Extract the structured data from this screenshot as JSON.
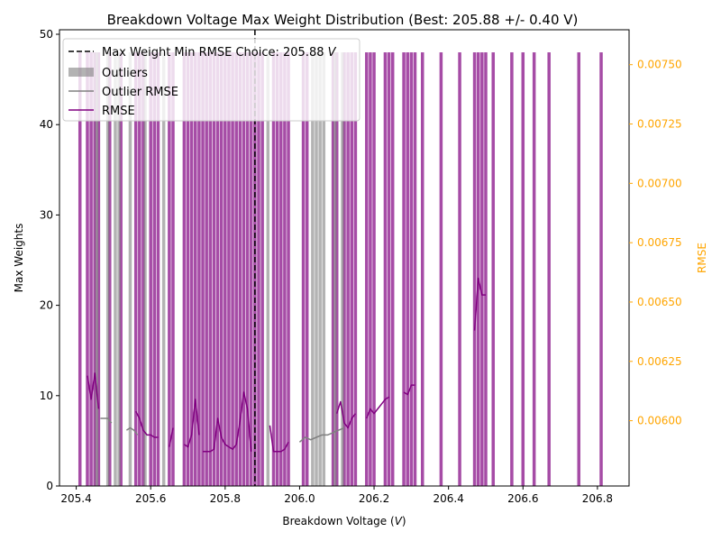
{
  "chart_data": {
    "type": "bar",
    "title": "Breakdown Voltage Max Weight Distribution (Best: 205.88 +/- 0.40 V)",
    "xlabel_main": "Breakdown Voltage (",
    "xlabel_unit": "V",
    "xlabel_close": ")",
    "ylabel_left": "Max Weights",
    "ylabel_right": "RMSE",
    "xlim": [
      205.355,
      206.885
    ],
    "ylim_left": [
      0,
      50.5
    ],
    "ylim_right": [
      0.005725,
      0.007647
    ],
    "x_ticks": [
      205.4,
      205.6,
      205.8,
      206.0,
      206.2,
      206.4,
      206.6,
      206.8
    ],
    "x_tick_labels": [
      "205.4",
      "205.6",
      "205.8",
      "206.0",
      "206.2",
      "206.4",
      "206.6",
      "206.8"
    ],
    "y_left_ticks": [
      0,
      10,
      20,
      30,
      40,
      50
    ],
    "y_left_tick_labels": [
      "0",
      "10",
      "20",
      "30",
      "40",
      "50"
    ],
    "y_right_ticks": [
      0.006,
      0.00625,
      0.0065,
      0.00675,
      0.007,
      0.00725,
      0.0075
    ],
    "y_right_tick_labels": [
      "0.00600",
      "0.00625",
      "0.00650",
      "0.00675",
      "0.00700",
      "0.00725",
      "0.00750"
    ],
    "colors": {
      "main": "#800080",
      "outlier": "#808080",
      "choice": "#000000",
      "right_axis": "#FFA500"
    },
    "legend": {
      "position": "upper left",
      "entries": [
        {
          "kind": "dashed",
          "label_main": "Max Weight Min RMSE Choice: 205.88 ",
          "label_unit": "V"
        },
        {
          "kind": "patch-gray",
          "label": "Outliers"
        },
        {
          "kind": "line-gray",
          "label": "Outlier RMSE"
        },
        {
          "kind": "line-purple",
          "label": "RMSE"
        }
      ]
    },
    "choice_x": 205.88,
    "bar_height": 48,
    "bar_width": 0.01,
    "outlier_bars": [
      205.455,
      205.485,
      205.505,
      205.515,
      205.545,
      205.585,
      205.635,
      205.915,
      206.035,
      206.045,
      206.055,
      206.065,
      206.095,
      206.115
    ],
    "main_bars": [
      205.41,
      205.43,
      205.44,
      205.45,
      205.46,
      205.49,
      205.52,
      205.56,
      205.57,
      205.58,
      205.6,
      205.61,
      205.62,
      205.65,
      205.66,
      205.69,
      205.7,
      205.71,
      205.72,
      205.73,
      205.74,
      205.75,
      205.76,
      205.77,
      205.78,
      205.79,
      205.8,
      205.81,
      205.82,
      205.83,
      205.84,
      205.85,
      205.86,
      205.87,
      205.88,
      205.89,
      205.9,
      205.93,
      205.94,
      205.95,
      205.96,
      205.97,
      206.01,
      206.02,
      206.09,
      206.1,
      206.12,
      206.13,
      206.14,
      206.15,
      206.18,
      206.19,
      206.2,
      206.23,
      206.24,
      206.25,
      206.28,
      206.29,
      206.3,
      206.31,
      206.33,
      206.38,
      206.43,
      206.47,
      206.48,
      206.49,
      206.5,
      206.52,
      206.57,
      206.6,
      206.63,
      206.67,
      206.75,
      206.81
    ],
    "outlier_rmse_segments": [
      {
        "x": [
          205.465,
          205.475,
          205.485,
          205.495
        ],
        "y": [
          0.00601,
          0.00601,
          0.00601,
          0.00599
        ]
      },
      {
        "x": [
          205.535,
          205.545,
          205.555,
          205.565
        ],
        "y": [
          0.00596,
          0.00597,
          0.00596,
          0.00594
        ]
      },
      {
        "x": [
          206.0,
          206.015,
          206.03,
          206.045,
          206.06,
          206.075,
          206.09,
          206.105,
          206.12
        ],
        "y": [
          0.00591,
          0.00593,
          0.00592,
          0.00593,
          0.00594,
          0.00594,
          0.00595,
          0.00596,
          0.00597
        ]
      }
    ],
    "rmse_segments": [
      {
        "x": [
          205.43,
          205.44,
          205.45,
          205.46
        ],
        "y": [
          0.00619,
          0.00609,
          0.0062,
          0.00605
        ]
      },
      {
        "x": [
          205.56,
          205.57,
          205.58,
          205.59,
          205.6,
          205.61,
          205.62
        ],
        "y": [
          0.00604,
          0.00601,
          0.00596,
          0.00594,
          0.00594,
          0.00593,
          0.00593
        ]
      },
      {
        "x": [
          205.65,
          205.66
        ],
        "y": [
          0.00589,
          0.00597
        ]
      },
      {
        "x": [
          205.69,
          205.7,
          205.71,
          205.72,
          205.73
        ],
        "y": [
          0.0059,
          0.00589,
          0.00594,
          0.00609,
          0.00594
        ]
      },
      {
        "x": [
          205.74,
          205.75,
          205.76,
          205.77,
          205.78,
          205.79,
          205.8,
          205.81,
          205.82,
          205.83,
          205.84,
          205.85,
          205.86,
          205.87
        ],
        "y": [
          0.00587,
          0.00587,
          0.00587,
          0.00588,
          0.00601,
          0.00593,
          0.0059,
          0.00589,
          0.00588,
          0.0059,
          0.006,
          0.00612,
          0.00605,
          0.00587
        ]
      },
      {
        "x": [
          205.92,
          205.93,
          205.94,
          205.95,
          205.96,
          205.97
        ],
        "y": [
          0.00598,
          0.00587,
          0.00587,
          0.00587,
          0.00588,
          0.00591
        ]
      },
      {
        "x": [
          206.1,
          206.11,
          206.12,
          206.13,
          206.14,
          206.15
        ],
        "y": [
          0.00603,
          0.00608,
          0.00599,
          0.00597,
          0.00601,
          0.00603
        ]
      },
      {
        "x": [
          206.18,
          206.19,
          206.2,
          206.21,
          206.22,
          206.23,
          206.24
        ],
        "y": [
          0.00601,
          0.00605,
          0.00603,
          0.00605,
          0.00607,
          0.00609,
          0.0061
        ]
      },
      {
        "x": [
          206.28,
          206.29,
          206.3,
          206.31
        ],
        "y": [
          0.00612,
          0.00611,
          0.00615,
          0.00615
        ]
      },
      {
        "x": [
          206.47,
          206.48,
          206.49,
          206.5
        ],
        "y": [
          0.00638,
          0.0066,
          0.00653,
          0.00653
        ]
      }
    ]
  }
}
